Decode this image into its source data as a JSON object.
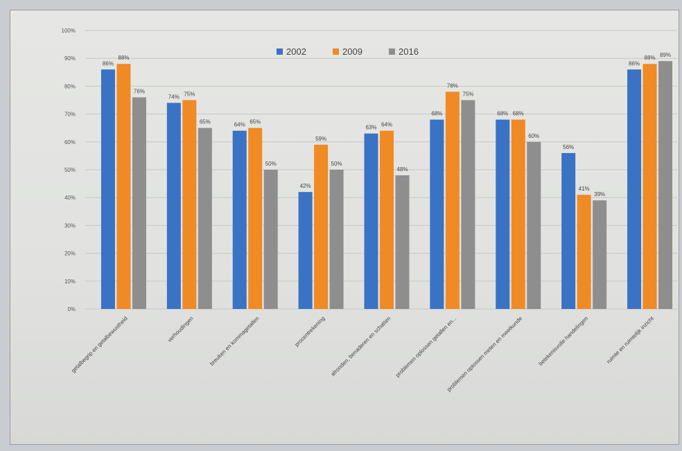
{
  "chart_data": {
    "type": "bar",
    "title": "",
    "xlabel": "",
    "ylabel": "",
    "ylim": [
      0,
      100
    ],
    "yticks": [
      "0%",
      "10%",
      "20%",
      "30%",
      "40%",
      "50%",
      "60%",
      "70%",
      "80%",
      "90%",
      "100%"
    ],
    "grid": true,
    "legend_position": "top-center",
    "categories": [
      "getalbegrip en getalbewustheid",
      "verhoudingen",
      "breuken en kommagetallen",
      "procentrekening",
      "afronden, benaderen en schatten",
      "problemen oplossen getallen en...",
      "problemen oplossen meten en meetkunde",
      "betekenisvolle handelingen",
      "ruimte en ruimtelijk inzicht"
    ],
    "series": [
      {
        "name": "2002",
        "color": "#3a72c4",
        "values": [
          86,
          74,
          64,
          42,
          63,
          68,
          68,
          56,
          86
        ],
        "labels": [
          "86%",
          "74%",
          "64%",
          "42%",
          "63%",
          "68%",
          "68%",
          "56%",
          "86%"
        ]
      },
      {
        "name": "2009",
        "color": "#f08a24",
        "values": [
          88,
          75,
          65,
          59,
          64,
          78,
          68,
          41,
          88
        ],
        "labels": [
          "88%",
          "75%",
          "65%",
          "59%",
          "64%",
          "78%",
          "68%",
          "41%",
          "88%"
        ]
      },
      {
        "name": "2016",
        "color": "#8e8e8e",
        "values": [
          76,
          65,
          50,
          50,
          48,
          75,
          60,
          39,
          89
        ],
        "labels": [
          "76%",
          "65%",
          "50%",
          "50%",
          "48%",
          "75%",
          "60%",
          "39%",
          "89%"
        ]
      }
    ]
  }
}
